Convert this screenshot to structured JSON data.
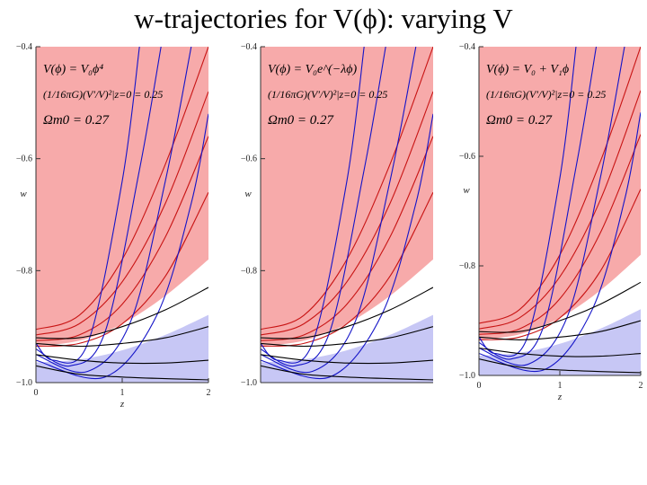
{
  "slide": {
    "title": "w-trajectories for V(ϕ): varying V"
  },
  "colors": {
    "allowed_region": "#f7aaaa",
    "excluded_region": "#ffffff",
    "lower_band": "#b9b9f2",
    "red_curves": "#c81414",
    "blue_curves": "#1414c8",
    "black_curves": "#000000"
  },
  "chart_data": [
    {
      "type": "line",
      "panel": "left",
      "annotation": {
        "potential": "V(ϕ) = V₀ϕ⁴",
        "normalization": "(1/16πG)(V′/V)²|z=0 = 0.25",
        "omega": "Ωm0 = 0.27"
      },
      "xlabel": "z",
      "ylabel": "w",
      "xlim": [
        0,
        2
      ],
      "ylim": [
        -1.0,
        -0.4
      ],
      "x_ticks": [
        "0",
        "1",
        "2"
      ],
      "y_ticks": [
        "−1.0",
        "−0.8",
        "−0.6",
        "−0.4"
      ],
      "allowed_region_lower_boundary": {
        "x": [
          0,
          0.5,
          1.0,
          1.5,
          2.0
        ],
        "y": [
          -0.935,
          -0.925,
          -0.895,
          -0.845,
          -0.78
        ]
      },
      "series": [
        {
          "color": "red",
          "x": [
            0,
            0.5,
            1.0,
            1.5,
            2.0
          ],
          "y": [
            -0.905,
            -0.88,
            -0.78,
            -0.61,
            -0.4
          ]
        },
        {
          "color": "red",
          "x": [
            0,
            0.5,
            1.0,
            1.5,
            2.0
          ],
          "y": [
            -0.915,
            -0.895,
            -0.82,
            -0.68,
            -0.48
          ]
        },
        {
          "color": "red",
          "x": [
            0,
            0.5,
            1.0,
            1.5,
            2.0
          ],
          "y": [
            -0.925,
            -0.915,
            -0.86,
            -0.74,
            -0.56
          ]
        },
        {
          "color": "red",
          "x": [
            0,
            0.5,
            1.0,
            1.5,
            2.0
          ],
          "y": [
            -0.935,
            -0.93,
            -0.895,
            -0.81,
            -0.66
          ]
        },
        {
          "color": "blue",
          "x": [
            0,
            0.2,
            0.6,
            1.0,
            1.2
          ],
          "y": [
            -0.93,
            -0.96,
            -0.93,
            -0.64,
            -0.4
          ]
        },
        {
          "color": "blue",
          "x": [
            0,
            0.4,
            0.8,
            1.2,
            1.45
          ],
          "y": [
            -0.94,
            -0.97,
            -0.91,
            -0.62,
            -0.4
          ]
        },
        {
          "color": "blue",
          "x": [
            0,
            0.6,
            1.1,
            1.5,
            1.8
          ],
          "y": [
            -0.95,
            -0.98,
            -0.89,
            -0.64,
            -0.4
          ]
        },
        {
          "color": "blue",
          "x": [
            0,
            0.8,
            1.4,
            1.8,
            2.0
          ],
          "y": [
            -0.96,
            -0.99,
            -0.88,
            -0.68,
            -0.52
          ]
        },
        {
          "color": "black",
          "x": [
            0,
            0.5,
            1.0,
            1.5,
            2.0
          ],
          "y": [
            -0.92,
            -0.92,
            -0.9,
            -0.87,
            -0.83
          ]
        },
        {
          "color": "black",
          "x": [
            0,
            0.5,
            1.0,
            1.5,
            2.0
          ],
          "y": [
            -0.93,
            -0.935,
            -0.93,
            -0.92,
            -0.9
          ]
        },
        {
          "color": "black",
          "x": [
            0,
            0.5,
            1.0,
            1.5,
            2.0
          ],
          "y": [
            -0.95,
            -0.96,
            -0.965,
            -0.965,
            -0.96
          ]
        },
        {
          "color": "black",
          "x": [
            0,
            0.5,
            1.0,
            1.5,
            2.0
          ],
          "y": [
            -0.97,
            -0.985,
            -0.99,
            -0.993,
            -0.995
          ]
        }
      ]
    },
    {
      "type": "line",
      "panel": "middle",
      "annotation": {
        "potential": "V(ϕ) = V₀e^(−λϕ)",
        "normalization": "(1/16πG)(V′/V)²|z=0 = 0.25",
        "omega": "Ωm0 = 0.27"
      },
      "xlabel": "",
      "ylabel": "w",
      "xlim": [
        0,
        2
      ],
      "ylim": [
        -1.0,
        -0.4
      ],
      "x_ticks": [],
      "y_ticks": [
        "−1.0",
        "−0.8",
        "−0.6",
        "−0.4"
      ],
      "allowed_region_lower_boundary": {
        "x": [
          0,
          0.5,
          1.0,
          1.5,
          2.0
        ],
        "y": [
          -0.935,
          -0.925,
          -0.895,
          -0.845,
          -0.78
        ]
      },
      "series": [
        {
          "color": "red",
          "x": [
            0,
            0.5,
            1.0,
            1.5,
            2.0
          ],
          "y": [
            -0.905,
            -0.88,
            -0.78,
            -0.61,
            -0.4
          ]
        },
        {
          "color": "red",
          "x": [
            0,
            0.5,
            1.0,
            1.5,
            2.0
          ],
          "y": [
            -0.915,
            -0.895,
            -0.82,
            -0.68,
            -0.48
          ]
        },
        {
          "color": "red",
          "x": [
            0,
            0.5,
            1.0,
            1.5,
            2.0
          ],
          "y": [
            -0.925,
            -0.915,
            -0.86,
            -0.74,
            -0.56
          ]
        },
        {
          "color": "red",
          "x": [
            0,
            0.5,
            1.0,
            1.5,
            2.0
          ],
          "y": [
            -0.935,
            -0.93,
            -0.895,
            -0.81,
            -0.66
          ]
        },
        {
          "color": "blue",
          "x": [
            0,
            0.2,
            0.6,
            1.0,
            1.2
          ],
          "y": [
            -0.93,
            -0.96,
            -0.93,
            -0.64,
            -0.4
          ]
        },
        {
          "color": "blue",
          "x": [
            0,
            0.4,
            0.8,
            1.2,
            1.45
          ],
          "y": [
            -0.94,
            -0.97,
            -0.91,
            -0.62,
            -0.4
          ]
        },
        {
          "color": "blue",
          "x": [
            0,
            0.6,
            1.1,
            1.5,
            1.8
          ],
          "y": [
            -0.95,
            -0.98,
            -0.89,
            -0.64,
            -0.4
          ]
        },
        {
          "color": "blue",
          "x": [
            0,
            0.8,
            1.4,
            1.8,
            2.0
          ],
          "y": [
            -0.96,
            -0.99,
            -0.88,
            -0.68,
            -0.52
          ]
        },
        {
          "color": "black",
          "x": [
            0,
            0.5,
            1.0,
            1.5,
            2.0
          ],
          "y": [
            -0.92,
            -0.92,
            -0.9,
            -0.87,
            -0.83
          ]
        },
        {
          "color": "black",
          "x": [
            0,
            0.5,
            1.0,
            1.5,
            2.0
          ],
          "y": [
            -0.93,
            -0.935,
            -0.93,
            -0.92,
            -0.9
          ]
        },
        {
          "color": "black",
          "x": [
            0,
            0.5,
            1.0,
            1.5,
            2.0
          ],
          "y": [
            -0.95,
            -0.96,
            -0.965,
            -0.965,
            -0.96
          ]
        },
        {
          "color": "black",
          "x": [
            0,
            0.5,
            1.0,
            1.5,
            2.0
          ],
          "y": [
            -0.97,
            -0.985,
            -0.99,
            -0.993,
            -0.995
          ]
        }
      ]
    },
    {
      "type": "line",
      "panel": "right",
      "annotation": {
        "potential": "V(ϕ) = V₀ + V₁ϕ",
        "normalization": "(1/16πG)(V′/V)²|z=0 = 0.25",
        "omega": "Ωm0 = 0.27"
      },
      "xlabel": "z",
      "ylabel": "w",
      "xlim": [
        0,
        2
      ],
      "ylim": [
        -1.0,
        -0.4
      ],
      "x_ticks": [
        "0",
        "1",
        "2"
      ],
      "y_ticks": [
        "−1.0",
        "−0.8",
        "−0.6",
        "−0.4"
      ],
      "allowed_region_lower_boundary": {
        "x": [
          0,
          0.5,
          1.0,
          1.5,
          2.0
        ],
        "y": [
          -0.935,
          -0.925,
          -0.895,
          -0.845,
          -0.78
        ]
      },
      "series": [
        {
          "color": "red",
          "x": [
            0,
            0.5,
            1.0,
            1.5,
            2.0
          ],
          "y": [
            -0.905,
            -0.88,
            -0.78,
            -0.61,
            -0.4
          ]
        },
        {
          "color": "red",
          "x": [
            0,
            0.5,
            1.0,
            1.5,
            2.0
          ],
          "y": [
            -0.915,
            -0.895,
            -0.82,
            -0.68,
            -0.48
          ]
        },
        {
          "color": "red",
          "x": [
            0,
            0.5,
            1.0,
            1.5,
            2.0
          ],
          "y": [
            -0.925,
            -0.915,
            -0.86,
            -0.74,
            -0.56
          ]
        },
        {
          "color": "red",
          "x": [
            0,
            0.5,
            1.0,
            1.5,
            2.0
          ],
          "y": [
            -0.935,
            -0.93,
            -0.895,
            -0.81,
            -0.66
          ]
        },
        {
          "color": "blue",
          "x": [
            0,
            0.2,
            0.6,
            1.0,
            1.2
          ],
          "y": [
            -0.93,
            -0.96,
            -0.93,
            -0.64,
            -0.4
          ]
        },
        {
          "color": "blue",
          "x": [
            0,
            0.4,
            0.8,
            1.2,
            1.45
          ],
          "y": [
            -0.94,
            -0.97,
            -0.91,
            -0.62,
            -0.4
          ]
        },
        {
          "color": "blue",
          "x": [
            0,
            0.6,
            1.1,
            1.5,
            1.8
          ],
          "y": [
            -0.95,
            -0.98,
            -0.89,
            -0.64,
            -0.4
          ]
        },
        {
          "color": "blue",
          "x": [
            0,
            0.8,
            1.4,
            1.8,
            2.0
          ],
          "y": [
            -0.96,
            -0.99,
            -0.88,
            -0.68,
            -0.52
          ]
        },
        {
          "color": "black",
          "x": [
            0,
            0.5,
            1.0,
            1.5,
            2.0
          ],
          "y": [
            -0.92,
            -0.92,
            -0.9,
            -0.87,
            -0.83
          ]
        },
        {
          "color": "black",
          "x": [
            0,
            0.5,
            1.0,
            1.5,
            2.0
          ],
          "y": [
            -0.93,
            -0.935,
            -0.93,
            -0.92,
            -0.9
          ]
        },
        {
          "color": "black",
          "x": [
            0,
            0.5,
            1.0,
            1.5,
            2.0
          ],
          "y": [
            -0.95,
            -0.96,
            -0.965,
            -0.965,
            -0.96
          ]
        },
        {
          "color": "black",
          "x": [
            0,
            0.5,
            1.0,
            1.5,
            2.0
          ],
          "y": [
            -0.97,
            -0.985,
            -0.99,
            -0.993,
            -0.995
          ]
        }
      ]
    }
  ]
}
